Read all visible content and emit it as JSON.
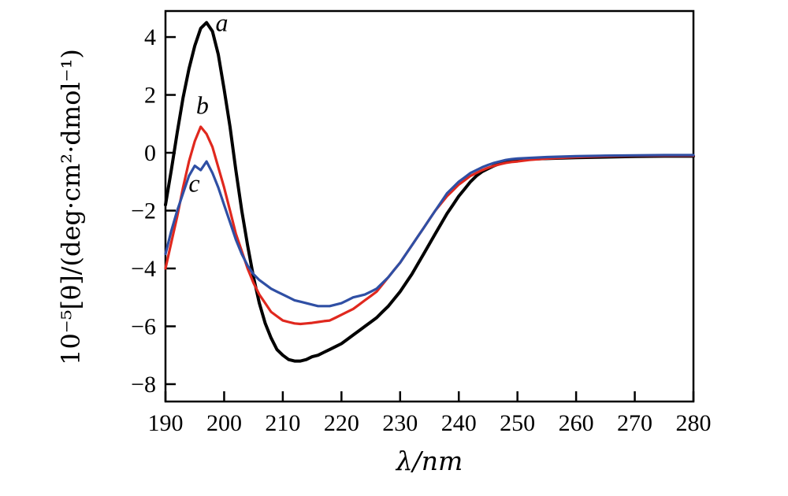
{
  "chart_data": {
    "type": "line",
    "title": "",
    "xlabel": "λ/nm",
    "ylabel": "10⁻⁵[θ]/(deg·cm²·dmol⁻¹)",
    "xlim": [
      190,
      280
    ],
    "ylim": [
      -8.6,
      4.9
    ],
    "xticks": [
      190,
      200,
      210,
      220,
      230,
      240,
      250,
      260,
      270,
      280
    ],
    "yticks": [
      4,
      2,
      0,
      -2,
      -4,
      -6,
      -8
    ],
    "grid": false,
    "legend_position": "none",
    "background": "#ffffff",
    "frame_color": "#000000",
    "x": [
      190,
      191,
      192,
      193,
      194,
      195,
      196,
      197,
      198,
      199,
      200,
      201,
      202,
      203,
      204,
      205,
      206,
      207,
      208,
      209,
      210,
      211,
      212,
      213,
      214,
      215,
      216,
      217,
      218,
      219,
      220,
      221,
      222,
      223,
      224,
      225,
      226,
      227,
      228,
      229,
      230,
      231,
      232,
      233,
      234,
      235,
      236,
      237,
      238,
      239,
      240,
      241,
      242,
      243,
      244,
      245,
      246,
      247,
      248,
      249,
      250,
      252,
      255,
      260,
      265,
      270,
      275,
      280
    ],
    "series": [
      {
        "name": "a",
        "color": "#000000",
        "width": 4,
        "y": [
          -1.8,
          -0.6,
          0.7,
          1.9,
          2.9,
          3.7,
          4.3,
          4.5,
          4.2,
          3.4,
          2.2,
          0.9,
          -0.6,
          -2.0,
          -3.2,
          -4.3,
          -5.2,
          -5.9,
          -6.4,
          -6.8,
          -7.0,
          -7.15,
          -7.2,
          -7.2,
          -7.15,
          -7.05,
          -7.0,
          -6.9,
          -6.8,
          -6.7,
          -6.6,
          -6.45,
          -6.3,
          -6.15,
          -6.0,
          -5.85,
          -5.7,
          -5.5,
          -5.3,
          -5.05,
          -4.8,
          -4.5,
          -4.2,
          -3.85,
          -3.5,
          -3.15,
          -2.8,
          -2.45,
          -2.1,
          -1.8,
          -1.5,
          -1.25,
          -1.0,
          -0.8,
          -0.65,
          -0.55,
          -0.45,
          -0.37,
          -0.3,
          -0.27,
          -0.25,
          -0.22,
          -0.2,
          -0.17,
          -0.15,
          -0.13,
          -0.12,
          -0.12
        ]
      },
      {
        "name": "b",
        "color": "#e0281e",
        "width": 3.2,
        "y": [
          -4.0,
          -3.1,
          -2.2,
          -1.2,
          -0.3,
          0.4,
          0.9,
          0.65,
          0.2,
          -0.5,
          -1.2,
          -2.0,
          -2.8,
          -3.4,
          -4.0,
          -4.5,
          -4.9,
          -5.2,
          -5.5,
          -5.65,
          -5.8,
          -5.85,
          -5.9,
          -5.92,
          -5.9,
          -5.88,
          -5.85,
          -5.82,
          -5.8,
          -5.7,
          -5.6,
          -5.5,
          -5.4,
          -5.25,
          -5.1,
          -4.95,
          -4.8,
          -4.55,
          -4.3,
          -4.05,
          -3.8,
          -3.5,
          -3.2,
          -2.9,
          -2.6,
          -2.3,
          -2.0,
          -1.75,
          -1.5,
          -1.3,
          -1.1,
          -0.95,
          -0.8,
          -0.7,
          -0.6,
          -0.52,
          -0.45,
          -0.4,
          -0.35,
          -0.32,
          -0.3,
          -0.25,
          -0.2,
          -0.15,
          -0.12,
          -0.1,
          -0.1,
          -0.1
        ]
      },
      {
        "name": "c",
        "color": "#2f4fa4",
        "width": 3.2,
        "y": [
          -3.5,
          -2.7,
          -2.0,
          -1.4,
          -0.8,
          -0.45,
          -0.6,
          -0.3,
          -0.7,
          -1.2,
          -1.8,
          -2.4,
          -3.0,
          -3.5,
          -3.9,
          -4.2,
          -4.4,
          -4.55,
          -4.7,
          -4.8,
          -4.9,
          -5.0,
          -5.1,
          -5.15,
          -5.2,
          -5.25,
          -5.3,
          -5.3,
          -5.3,
          -5.25,
          -5.2,
          -5.1,
          -5.0,
          -4.95,
          -4.9,
          -4.8,
          -4.7,
          -4.5,
          -4.3,
          -4.05,
          -3.8,
          -3.5,
          -3.2,
          -2.9,
          -2.6,
          -2.3,
          -2.0,
          -1.7,
          -1.4,
          -1.2,
          -1.0,
          -0.85,
          -0.7,
          -0.6,
          -0.5,
          -0.42,
          -0.35,
          -0.3,
          -0.25,
          -0.22,
          -0.2,
          -0.18,
          -0.15,
          -0.12,
          -0.1,
          -0.09,
          -0.08,
          -0.08
        ]
      }
    ],
    "annotations": [
      {
        "text": "a",
        "x": 199.6,
        "y": 4.2
      },
      {
        "text": "b",
        "x": 196.3,
        "y": 1.35
      },
      {
        "text": "c",
        "x": 194.9,
        "y": -1.35
      }
    ]
  }
}
